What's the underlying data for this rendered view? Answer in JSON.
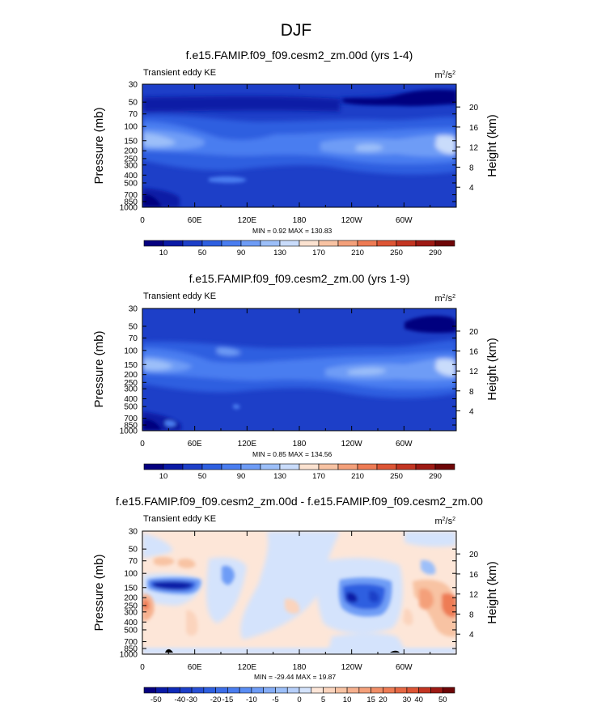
{
  "page_title": "DJF",
  "chart_data": [
    {
      "type": "heatmap",
      "title": "f.e15.FAMIP.f09_f09.cesm2_zm.00d (yrs 1-4)",
      "subtitle": "Transient eddy KE",
      "units_base": "m",
      "units_exp1": "2",
      "units_sep": "/s",
      "units_exp2": "2",
      "ylabel": "Pressure (mb)",
      "ylabel_right": "Height (km)",
      "x_ticks": [
        "0",
        "60E",
        "120E",
        "180",
        "120W",
        "60W"
      ],
      "x_tick_values": [
        0,
        60,
        120,
        180,
        240,
        300
      ],
      "xlim": [
        0,
        360
      ],
      "y_ticks": [
        "30",
        "50",
        "70",
        "100",
        "150",
        "200",
        "250",
        "300",
        "400",
        "500",
        "700",
        "850",
        "1000"
      ],
      "y_tick_values": [
        30,
        50,
        70,
        100,
        150,
        200,
        250,
        300,
        400,
        500,
        700,
        850,
        1000
      ],
      "ylim": [
        1000,
        30
      ],
      "height_ticks": [
        "4",
        "8",
        "12",
        "16",
        "20"
      ],
      "height_tick_values": [
        4,
        8,
        12,
        16,
        20
      ],
      "stats": "MIN =   0.92  MAX = 130.83",
      "colorbar_labels": [
        "10",
        "50",
        "90",
        "130",
        "170",
        "210",
        "250",
        "290"
      ],
      "colorbar_levels": [
        0,
        10,
        30,
        50,
        70,
        90,
        110,
        130,
        150,
        170,
        190,
        210,
        230,
        250,
        270,
        290
      ],
      "colorbar_colors": [
        "#05007f",
        "#0a1aa6",
        "#1d3fc8",
        "#2e5fe0",
        "#4a7df0",
        "#6e9cf6",
        "#9cbff9",
        "#c9dcfb",
        "#fbe2d0",
        "#f8c3a3",
        "#f4a07a",
        "#ee7b54",
        "#dd5535",
        "#c33522",
        "#9e1a14",
        "#6e0607"
      ],
      "description_fields": {
        "field": "transient eddy KE, m2/s2",
        "pattern": "jet maxima near 150-200 mb at 0-30E, 120W-60W and 330E"
      }
    },
    {
      "type": "heatmap",
      "title": "f.e15.FAMIP.f09_f09.cesm2_zm.00 (yrs 1-9)",
      "subtitle": "Transient eddy KE",
      "units_base": "m",
      "units_exp1": "2",
      "units_sep": "/s",
      "units_exp2": "2",
      "ylabel": "Pressure (mb)",
      "ylabel_right": "Height (km)",
      "x_ticks": [
        "0",
        "60E",
        "120E",
        "180",
        "120W",
        "60W"
      ],
      "x_tick_values": [
        0,
        60,
        120,
        180,
        240,
        300
      ],
      "xlim": [
        0,
        360
      ],
      "y_ticks": [
        "30",
        "50",
        "70",
        "100",
        "150",
        "200",
        "250",
        "300",
        "400",
        "500",
        "700",
        "850",
        "1000"
      ],
      "y_tick_values": [
        30,
        50,
        70,
        100,
        150,
        200,
        250,
        300,
        400,
        500,
        700,
        850,
        1000
      ],
      "ylim": [
        1000,
        30
      ],
      "height_ticks": [
        "4",
        "8",
        "12",
        "16",
        "20"
      ],
      "height_tick_values": [
        4,
        8,
        12,
        16,
        20
      ],
      "stats": "MIN =   0.85  MAX = 134.56",
      "colorbar_labels": [
        "10",
        "50",
        "90",
        "130",
        "170",
        "210",
        "250",
        "290"
      ],
      "colorbar_levels": [
        0,
        10,
        30,
        50,
        70,
        90,
        110,
        130,
        150,
        170,
        190,
        210,
        230,
        250,
        270,
        290
      ],
      "colorbar_colors": [
        "#05007f",
        "#0a1aa6",
        "#1d3fc8",
        "#2e5fe0",
        "#4a7df0",
        "#6e9cf6",
        "#9cbff9",
        "#c9dcfb",
        "#fbe2d0",
        "#f8c3a3",
        "#f4a07a",
        "#ee7b54",
        "#dd5535",
        "#c33522",
        "#9e1a14",
        "#6e0607"
      ]
    },
    {
      "type": "heatmap",
      "title": "f.e15.FAMIP.f09_f09.cesm2_zm.00d - f.e15.FAMIP.f09_f09.cesm2_zm.00",
      "subtitle": "Transient eddy KE",
      "units_base": "m",
      "units_exp1": "2",
      "units_sep": "/s",
      "units_exp2": "2",
      "ylabel": "Pressure (mb)",
      "ylabel_right": "Height (km)",
      "x_ticks": [
        "0",
        "60E",
        "120E",
        "180",
        "120W",
        "60W"
      ],
      "x_tick_values": [
        0,
        60,
        120,
        180,
        240,
        300
      ],
      "xlim": [
        0,
        360
      ],
      "y_ticks": [
        "30",
        "50",
        "70",
        "100",
        "150",
        "200",
        "250",
        "300",
        "400",
        "500",
        "700",
        "850",
        "1000"
      ],
      "y_tick_values": [
        30,
        50,
        70,
        100,
        150,
        200,
        250,
        300,
        400,
        500,
        700,
        850,
        1000
      ],
      "ylim": [
        1000,
        30
      ],
      "height_ticks": [
        "4",
        "8",
        "12",
        "16",
        "20"
      ],
      "height_tick_values": [
        4,
        8,
        12,
        16,
        20
      ],
      "stats": "MIN = -29.44  MAX = 19.87",
      "colorbar_labels": [
        "-50",
        "-40",
        "-30",
        "-20",
        "-15",
        "-10",
        "-5",
        "0",
        "5",
        "10",
        "15",
        "20",
        "30",
        "40",
        "50"
      ],
      "colorbar_levels": [
        -60,
        -50,
        -45,
        -40,
        -30,
        -25,
        -20,
        -15,
        -12,
        -10,
        -7,
        -5,
        -2,
        0,
        2,
        5,
        7,
        10,
        12,
        15,
        20,
        25,
        30,
        40,
        45,
        50
      ],
      "colorbar_colors": [
        "#05007f",
        "#0a1aa6",
        "#0f2ab8",
        "#1d3fc8",
        "#2850d6",
        "#2e5fe0",
        "#3d6ee8",
        "#4a7df0",
        "#5a8df3",
        "#6e9cf6",
        "#85adf7",
        "#9cbff9",
        "#b6cffa",
        "#d4e3fc",
        "#fde6d8",
        "#fbd4bd",
        "#f8c3a3",
        "#f6b08e",
        "#f4a07a",
        "#f18e67",
        "#ee7b54",
        "#e66844",
        "#dd5535",
        "#c33522",
        "#9e1a14",
        "#6e0607"
      ]
    }
  ]
}
